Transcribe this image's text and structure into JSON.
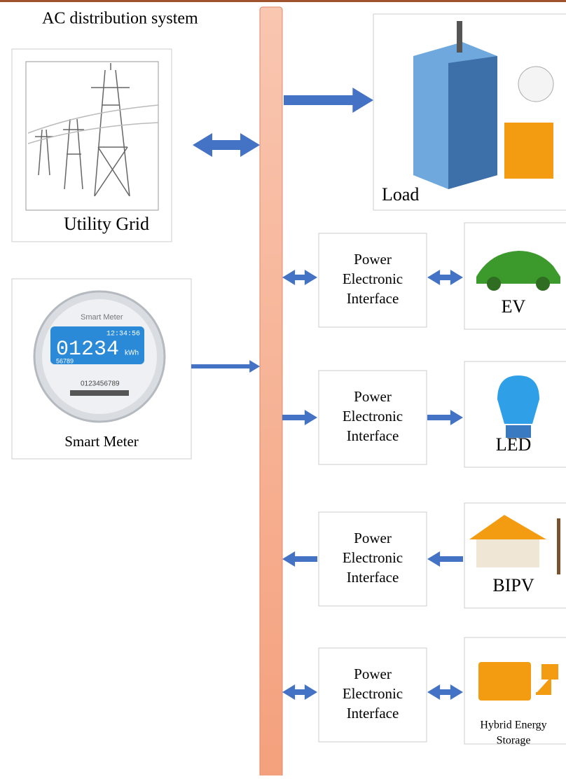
{
  "title": "AC distribution system",
  "sources": {
    "utility_grid": "Utility Grid",
    "smart_meter": "Smart Meter"
  },
  "meter": {
    "brand": "Smart Meter",
    "time": "12:34:56",
    "reading": "01234",
    "unit": "kWh",
    "sub": "56789",
    "serial": "0123456789"
  },
  "load": "Load",
  "interfaces": [
    {
      "lines": [
        "Power",
        "Electronic",
        "Interface"
      ],
      "device": [
        "EV"
      ]
    },
    {
      "lines": [
        "Power",
        "Electronic",
        "Interface"
      ],
      "device": [
        "LED"
      ]
    },
    {
      "lines": [
        "Power",
        "Electronic",
        "Interface"
      ],
      "device": [
        "BIPV"
      ]
    },
    {
      "lines": [
        "Power",
        "Electronic",
        "Interface"
      ],
      "device": [
        "Hybrid Energy",
        "Storage"
      ]
    }
  ]
}
